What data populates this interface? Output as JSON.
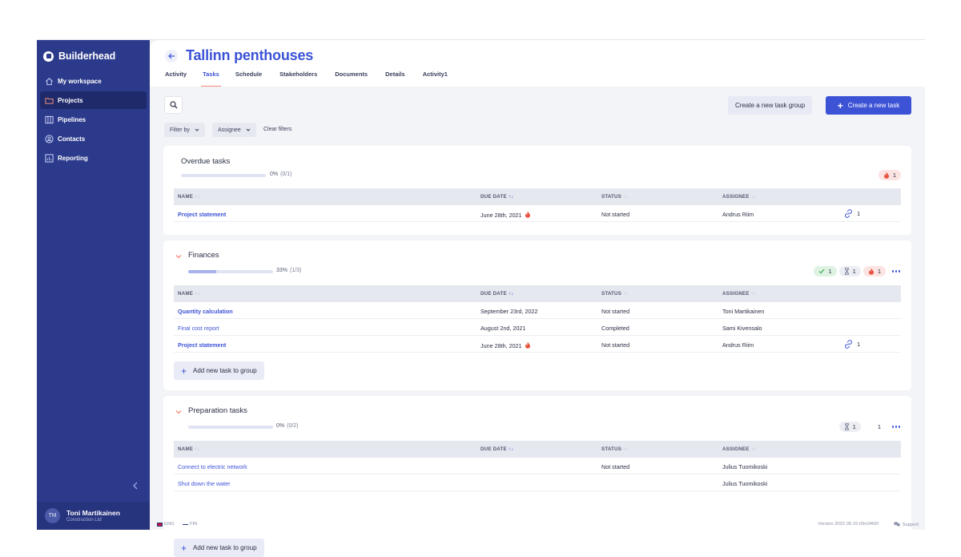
{
  "app": {
    "name": "Builderhead",
    "accent_color": "#3d53d6",
    "sidebar_color": "#2c3a8c"
  },
  "sidebar": {
    "items": [
      {
        "label": "My workspace",
        "icon": "home-icon"
      },
      {
        "label": "Projects",
        "icon": "folder-icon",
        "active": true
      },
      {
        "label": "Pipelines",
        "icon": "columns-icon"
      },
      {
        "label": "Contacts",
        "icon": "contact-icon"
      },
      {
        "label": "Reporting",
        "icon": "chart-icon"
      }
    ],
    "user": {
      "initials": "TM",
      "name": "Toni Martikainen",
      "company": "Construction Ltd"
    }
  },
  "header": {
    "title": "Tallinn penthouses",
    "tabs": [
      "Activity",
      "Tasks",
      "Schedule",
      "Stakeholders",
      "Documents",
      "Details",
      "Activity1"
    ],
    "active_tab": "Tasks"
  },
  "toolbar": {
    "create_group_label": "Create a new task group",
    "create_task_label": "Create a new task",
    "filter_by_label": "Filter by",
    "assignee_label": "Assignee",
    "clear_filters_label": "Clear filters"
  },
  "columns": [
    "NAME",
    "DUE DATE",
    "STATUS",
    "ASSIGNEE"
  ],
  "groups": [
    {
      "title": "Overdue tasks",
      "progress_text": "0%",
      "progress_count": "(0/1)",
      "progress_fraction": 0,
      "badges": {
        "overdue": "1"
      },
      "rows": [
        {
          "name": "Project statement",
          "due": "June 28th, 2021",
          "overdue": true,
          "status": "Not started",
          "assignee": "Andrus Riim",
          "links": "1"
        }
      ]
    },
    {
      "title": "Finances",
      "progress_text": "33%",
      "progress_count": "(1/3)",
      "progress_fraction": 0.33,
      "badges": {
        "completed": "1",
        "pending": "1",
        "overdue": "1"
      },
      "add_label": "Add new task to group",
      "rows": [
        {
          "name": "Quantity calculation",
          "due": "September 23rd, 2022",
          "status": "Not started",
          "assignee": "Toni Martikainen"
        },
        {
          "name": "Final cost report",
          "due": "August 2nd, 2021",
          "status": "Completed",
          "assignee": "Sami Kivensalo"
        },
        {
          "name": "Project statement",
          "due": "June 28th, 2021",
          "overdue": true,
          "status": "Not started",
          "assignee": "Andrus Riim",
          "links": "1"
        }
      ]
    },
    {
      "title": "Preparation tasks",
      "progress_text": "0%",
      "progress_count": "(0/2)",
      "progress_fraction": 0,
      "badges": {
        "pending": "1",
        "other": "1"
      },
      "add_label": "Add new task to group",
      "rows": [
        {
          "name": "Connect to electric network",
          "due": "",
          "status": "Not started",
          "assignee": "Julius Tuomikoski"
        },
        {
          "name": "Shut down the water",
          "due": "",
          "status": "",
          "assignee": "Julius Tuomikoski"
        }
      ]
    }
  ],
  "footer": {
    "lang_eng": "ENG",
    "lang_fin": "FIN",
    "version": "Version 2022.09.15-09c0466f",
    "support": "Support"
  }
}
